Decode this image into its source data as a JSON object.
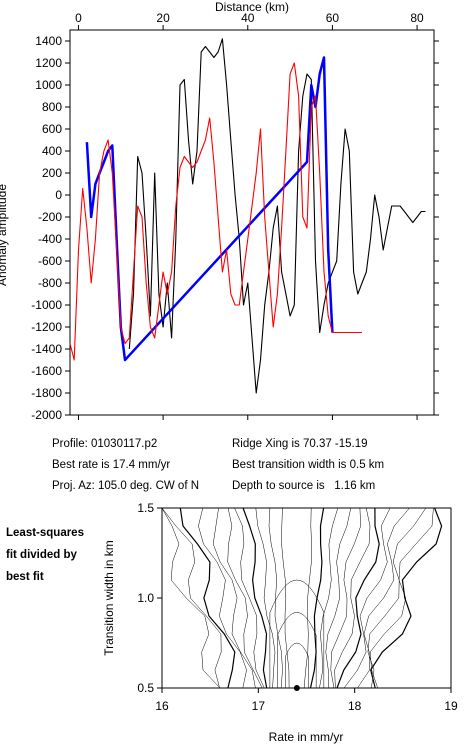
{
  "info": {
    "profile": "Profile: 01030117.p2",
    "best_rate": "Best rate is 17.4 mm/yr",
    "proj_az": "Proj. Az: 105.0 deg. CW of N",
    "ridge_xing": "Ridge Xing is 70.37 -15.19",
    "transition_width": "Best transition width is 0.5 km",
    "depth_to_source": "Depth to source is   1.16 km"
  },
  "side_note": {
    "line1": "Least-squares",
    "line2": "fit divided by",
    "line3": "best fit"
  },
  "chart_data": [
    {
      "type": "line",
      "xlabel": "Distance (km)",
      "ylabel": "Anomaly amplitude",
      "xlim": [
        -2,
        84
      ],
      "ylim": [
        -2000,
        1500
      ],
      "x_ticks": [
        "0",
        "20",
        "40",
        "60",
        "80"
      ],
      "y_ticks": [
        "1400",
        "1200",
        "1000",
        "800",
        "600",
        "400",
        "200",
        "0",
        "-200",
        "-400",
        "-600",
        "-800",
        "-1000",
        "-1200",
        "-1400",
        "-1600",
        "-1800",
        "-2000"
      ],
      "x_axis_position": "top",
      "series": [
        {
          "color": "#000000",
          "x": [
            12,
            13,
            14,
            15,
            16,
            17,
            18,
            19,
            20,
            21,
            22,
            23,
            24,
            25,
            26,
            27,
            28,
            29,
            30,
            31,
            32,
            33,
            34,
            35,
            36,
            37,
            38,
            39,
            40,
            41,
            42,
            43,
            44,
            45,
            46,
            47,
            48,
            49,
            50,
            51,
            52,
            53,
            54,
            55,
            56,
            57,
            58,
            59,
            60,
            61,
            62,
            63,
            64,
            65,
            66,
            67,
            68,
            69,
            70,
            71,
            72,
            73,
            74,
            75,
            76,
            77,
            78,
            79,
            80,
            81,
            82
          ],
          "y": [
            -1400,
            -900,
            350,
            200,
            -400,
            -1100,
            200,
            -900,
            -1200,
            -800,
            -1300,
            -400,
            1000,
            1050,
            500,
            100,
            400,
            1300,
            1350,
            1300,
            1250,
            1300,
            1420,
            1000,
            500,
            0,
            -400,
            -1000,
            -800,
            -1300,
            -1800,
            -1500,
            -1000,
            -700,
            -300,
            -100,
            -700,
            -900,
            -1100,
            -1000,
            400,
            900,
            1100,
            1050,
            -600,
            -1250,
            -1000,
            -800,
            -700,
            -600,
            100,
            600,
            400,
            -700,
            -900,
            -800,
            -700,
            -400,
            0,
            -200,
            -500,
            -300,
            -100,
            -100,
            -100,
            -150,
            -200,
            -250,
            -200,
            -150,
            -150
          ],
          "note": "observed"
        },
        {
          "color": "#0000ff",
          "x": [
            2,
            3,
            4,
            5,
            6,
            7,
            8,
            9,
            10,
            11,
            54,
            55,
            56,
            57,
            58,
            59,
            60
          ],
          "y": [
            480,
            -200,
            100,
            200,
            300,
            400,
            450,
            -400,
            -1200,
            -1500,
            300,
            1000,
            800,
            1100,
            1250,
            -500,
            -1250
          ]
        },
        {
          "color": "#ff0000",
          "x": [
            -2,
            -1,
            0,
            1,
            2,
            3,
            4,
            5,
            6,
            7,
            8,
            9,
            10,
            11,
            12,
            13,
            14,
            15,
            16,
            17,
            18,
            19,
            20,
            21,
            22,
            23,
            24,
            25,
            26,
            27,
            28,
            29,
            30,
            31,
            32,
            33,
            34,
            35,
            36,
            37,
            38,
            39,
            40,
            41,
            42,
            43,
            44,
            45,
            46,
            47,
            48,
            49,
            50,
            51,
            52,
            53,
            54,
            55,
            56,
            57,
            58,
            59,
            60,
            61,
            62,
            63,
            64,
            65,
            66,
            67
          ],
          "y": [
            -1350,
            -1500,
            -500,
            60,
            -300,
            -800,
            -400,
            200,
            400,
            500,
            200,
            -500,
            -1200,
            -1350,
            -1300,
            -700,
            -100,
            -200,
            -800,
            -1200,
            -1300,
            -1000,
            -700,
            -900,
            -700,
            -100,
            250,
            350,
            300,
            250,
            300,
            400,
            500,
            700,
            300,
            -200,
            -700,
            -500,
            -900,
            -1000,
            -1000,
            -700,
            -400,
            -100,
            200,
            600,
            -200,
            -700,
            -1200,
            -900,
            -300,
            400,
            1100,
            1200,
            900,
            -200,
            -300,
            800,
            900,
            200,
            -700,
            -1100,
            -1250,
            -1250,
            -1250,
            -1250,
            -1250,
            -1250,
            -1250,
            -1250
          ]
        }
      ]
    },
    {
      "type": "contour",
      "xlabel": "Rate in mm/yr",
      "ylabel": "Transition width in km",
      "xlim": [
        16,
        19
      ],
      "ylim": [
        0.5,
        1.5
      ],
      "x_ticks": [
        "16",
        "17",
        "18",
        "19"
      ],
      "y_ticks": [
        "0.5",
        "1.0",
        "1.5"
      ],
      "best_fit_point": [
        17.4,
        0.5
      ]
    }
  ]
}
